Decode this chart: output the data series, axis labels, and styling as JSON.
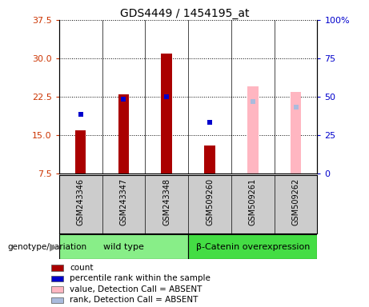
{
  "title": "GDS4449 / 1454195_at",
  "samples": [
    "GSM243346",
    "GSM243347",
    "GSM243348",
    "GSM509260",
    "GSM509261",
    "GSM509262"
  ],
  "count_values": [
    16.0,
    23.0,
    31.0,
    13.0,
    null,
    null
  ],
  "percentile_values": [
    19.0,
    22.0,
    22.5,
    17.5,
    null,
    null
  ],
  "absent_value_values": [
    null,
    null,
    null,
    null,
    24.5,
    23.5
  ],
  "absent_rank_values": [
    null,
    null,
    null,
    null,
    21.5,
    20.5
  ],
  "ylim_left": [
    7.5,
    37.5
  ],
  "ylim_right": [
    0,
    100
  ],
  "count_color": "#AA0000",
  "percentile_color": "#0000CC",
  "absent_value_color": "#FFB6C1",
  "absent_rank_color": "#AABBDD",
  "bar_width": 0.25,
  "yticks_left": [
    7.5,
    15.0,
    22.5,
    30.0,
    37.5
  ],
  "yticks_right": [
    0,
    25,
    50,
    75,
    100
  ],
  "plot_bg": "#FFFFFF",
  "sample_bg": "#CCCCCC",
  "wt_color": "#88EE88",
  "bc_color": "#44DD44",
  "legend_items": [
    {
      "label": "count",
      "color": "#AA0000"
    },
    {
      "label": "percentile rank within the sample",
      "color": "#0000CC"
    },
    {
      "label": "value, Detection Call = ABSENT",
      "color": "#FFB6C1"
    },
    {
      "label": "rank, Detection Call = ABSENT",
      "color": "#AABBDD"
    }
  ]
}
